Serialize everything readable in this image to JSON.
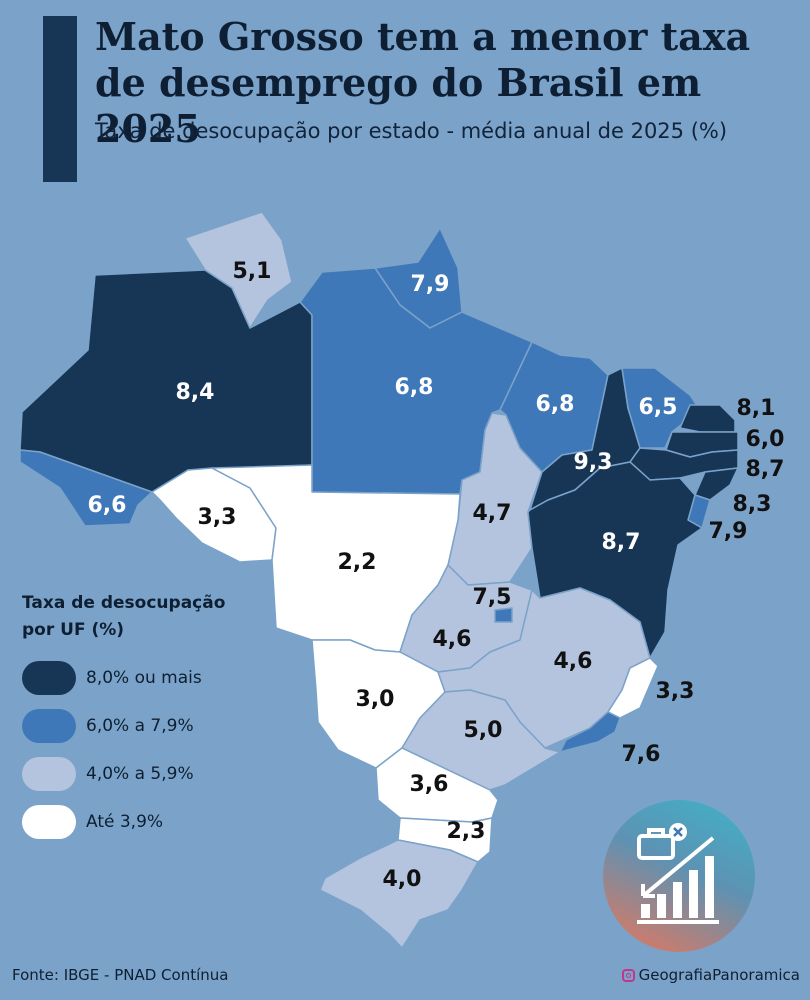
{
  "header": {
    "title": "Mato Grosso tem a menor taxa de desemprego do Brasil em 2025",
    "subtitle": "Taxa de desocupação por estado - média anual de 2025 (%)"
  },
  "colors": {
    "background": "#7ba3c9",
    "class_8_plus": "#173656",
    "class_6_to_7_9": "#3f78b8",
    "class_4_to_5_9": "#b4c3de",
    "class_below_4": "#ffffff"
  },
  "states": [
    {
      "uf": "AM",
      "value": "8,4"
    },
    {
      "uf": "RR",
      "value": "5,1"
    },
    {
      "uf": "AP",
      "value": "7,9"
    },
    {
      "uf": "PA",
      "value": "6,8"
    },
    {
      "uf": "AC",
      "value": "6,6"
    },
    {
      "uf": "RO",
      "value": "3,3"
    },
    {
      "uf": "MT",
      "value": "2,2"
    },
    {
      "uf": "TO",
      "value": "4,7"
    },
    {
      "uf": "MA",
      "value": "6,8"
    },
    {
      "uf": "PI",
      "value": "9,3"
    },
    {
      "uf": "CE",
      "value": "6,5"
    },
    {
      "uf": "RN",
      "value": "8,1"
    },
    {
      "uf": "PB",
      "value": "6,0"
    },
    {
      "uf": "PE",
      "value": "8,7"
    },
    {
      "uf": "AL",
      "value": "8,3"
    },
    {
      "uf": "SE",
      "value": "7,9"
    },
    {
      "uf": "BA",
      "value": "8,7"
    },
    {
      "uf": "DF",
      "value": "7,5"
    },
    {
      "uf": "GO",
      "value": "4,6"
    },
    {
      "uf": "MG",
      "value": "4,6"
    },
    {
      "uf": "ES",
      "value": "3,3"
    },
    {
      "uf": "RJ",
      "value": "7,6"
    },
    {
      "uf": "MS",
      "value": "3,0"
    },
    {
      "uf": "SP",
      "value": "5,0"
    },
    {
      "uf": "PR",
      "value": "3,6"
    },
    {
      "uf": "SC",
      "value": "2,3"
    },
    {
      "uf": "RS",
      "value": "4,0"
    }
  ],
  "legend": {
    "title": "Taxa de desocupação por UF (%)",
    "items": [
      {
        "label": "8,0% ou mais",
        "color": "#173656"
      },
      {
        "label": "6,0% a 7,9%",
        "color": "#3f78b8"
      },
      {
        "label": "4,0% a 5,9%",
        "color": "#b4c3de"
      },
      {
        "label": "Até 3,9%",
        "color": "#ffffff"
      }
    ]
  },
  "footer": {
    "source": "Fonte: IBGE - PNAD Contínua",
    "handle": "GeografiaPanoramica"
  },
  "logo": {
    "icon": "unemployment-chart-logo-icon"
  }
}
